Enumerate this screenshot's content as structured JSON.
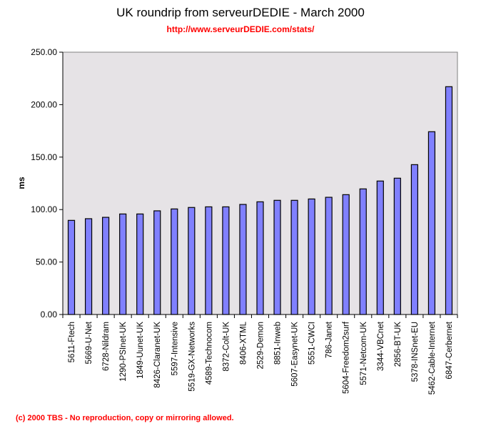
{
  "chart_data": {
    "type": "bar",
    "title": "UK roundrip from serveurDEDIE - March 2000",
    "subtitle": "http://www.serveurDEDIE.com/stats/",
    "xlabel": "",
    "ylabel": "ms",
    "ylim": [
      0,
      250
    ],
    "yticks": [
      "0.00",
      "50.00",
      "100.00",
      "150.00",
      "200.00",
      "250.00"
    ],
    "categories": [
      "5611-Ftech",
      "5669-U-Net",
      "6728-Nildram",
      "1290-PSInet-UK",
      "1849-Uunet-UK",
      "8426-Claranet-UK",
      "5597-Intensive",
      "5519-GX-Networks",
      "4589-Technocom",
      "8372-Colt-UK",
      "8406-XTML",
      "2529-Demon",
      "8851-Inweb",
      "5607-Easynet-UK",
      "5551-CWCI",
      "786-Janet",
      "5604-Freedom2surf",
      "5571-Netcom-UK",
      "3344-VBCnet",
      "2856-BT-UK",
      "5378-INSnet-EU",
      "5462-Cable-Internet",
      "6847-Cerbernet"
    ],
    "values": [
      89.7,
      91.3,
      92.6,
      95.8,
      95.8,
      98.8,
      100.6,
      102.0,
      102.6,
      102.6,
      104.9,
      107.4,
      108.8,
      108.8,
      110.1,
      111.7,
      114.2,
      119.7,
      127.2,
      129.9,
      142.8,
      174.2,
      217.1
    ],
    "bar_color": "#8080ff",
    "plot_bg": "#e6e3e6",
    "grid": false,
    "legend": "none"
  },
  "footer": "(c) 2000 TBS - No reproduction, copy or mirroring allowed."
}
